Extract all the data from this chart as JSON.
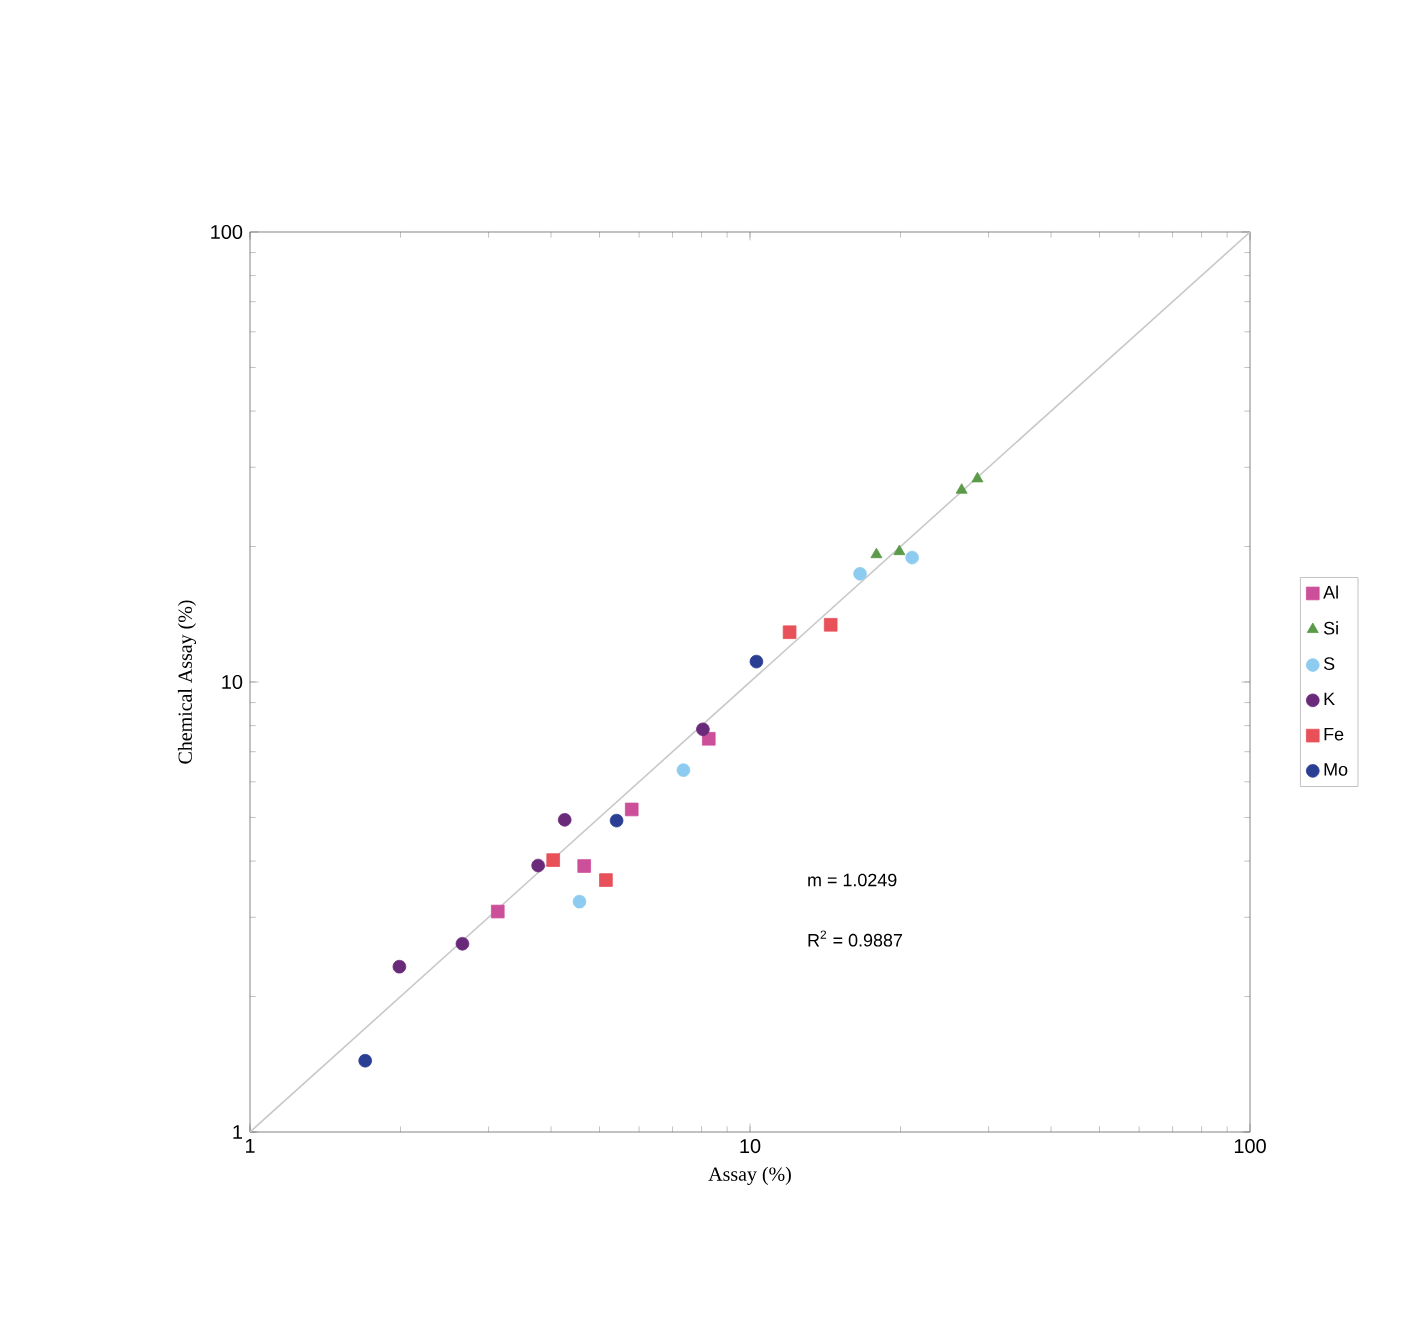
{
  "chart_data": {
    "type": "scatter",
    "xlabel": "Assay (%)",
    "ylabel": "Chemical Assay (%)",
    "log": "xy",
    "xlim": [
      1,
      100
    ],
    "ylim": [
      1,
      100
    ],
    "xticks": [
      1,
      10,
      100
    ],
    "yticks": [
      1,
      10,
      100
    ],
    "grid": false,
    "legend": "right",
    "annotations": [
      "m = 1.0249",
      "R$^{2}$ = 0.9887"
    ],
    "series": [
      {
        "name": "Al",
        "color": "#cc4f9a",
        "marker": "square",
        "x": [
          3.13,
          4.66,
          5.8,
          8.27
        ],
        "values": [
          3.09,
          3.9,
          5.21,
          7.48
        ]
      },
      {
        "name": "Si",
        "color": "#5a9a48",
        "marker": "triangle",
        "x": [
          17.9,
          19.9,
          26.5,
          28.5
        ],
        "values": [
          19.2,
          19.5,
          26.7,
          28.3
        ]
      },
      {
        "name": "S",
        "color": "#8ecbf0",
        "marker": "circle",
        "x": [
          4.56,
          7.36,
          16.6,
          21.1
        ],
        "values": [
          3.25,
          6.37,
          17.4,
          18.9
        ]
      },
      {
        "name": "K",
        "color": "#6a2a7a",
        "marker": "circle",
        "x": [
          1.99,
          2.66,
          3.77,
          4.26,
          8.05
        ],
        "values": [
          2.33,
          2.62,
          3.91,
          4.94,
          7.85
        ]
      },
      {
        "name": "Fe",
        "color": "#e8505a",
        "marker": "square",
        "x": [
          4.04,
          5.15,
          12.0,
          14.5
        ],
        "values": [
          4.02,
          3.63,
          12.9,
          13.4
        ]
      },
      {
        "name": "Mo",
        "color": "#2a3e94",
        "marker": "circle",
        "x": [
          1.7,
          5.41,
          10.3
        ],
        "values": [
          1.44,
          4.92,
          11.1
        ]
      },
      {
        "type": "line",
        "color": "#c8c8c8",
        "x": [
          1,
          100
        ],
        "values": [
          1,
          100
        ]
      }
    ]
  }
}
